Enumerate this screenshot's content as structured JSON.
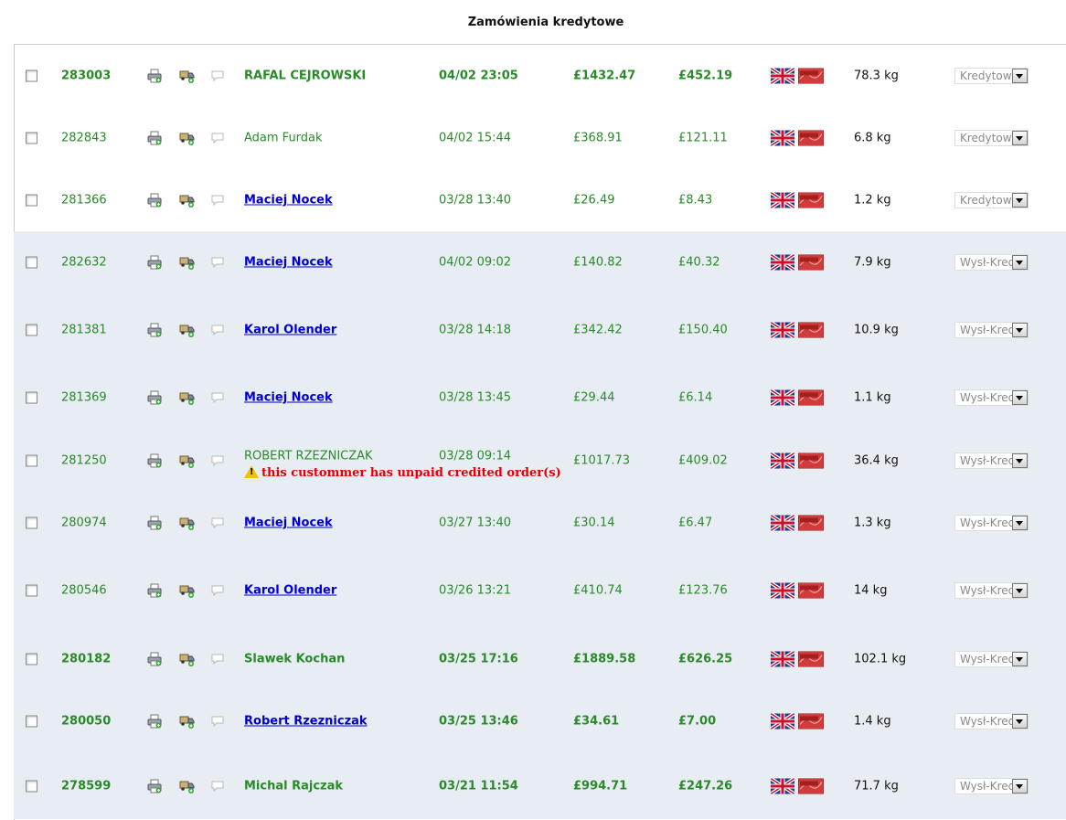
{
  "title": "Zamówienia kredytowe",
  "warning_text": "this custommer has unpaid credited order(s)",
  "rows": [
    {
      "id": "283003",
      "name": "RAFAL CEJROWSKI",
      "date": "04/02 23:05",
      "total": "£1432.47",
      "credit": "£452.19",
      "weight": "78.3 kg",
      "status": "Kredytowe"
    },
    {
      "id": "282843",
      "name": "Adam Furdak",
      "date": "04/02 15:44",
      "total": "£368.91",
      "credit": "£121.11",
      "weight": "6.8 kg",
      "status": "Kredytowe"
    },
    {
      "id": "281366",
      "name": "Maciej Nocek",
      "date": "03/28 13:40",
      "total": "£26.49",
      "credit": "£8.43",
      "weight": "1.2 kg",
      "status": "Kredytowe"
    },
    {
      "id": "282632",
      "name": "Maciej Nocek",
      "date": "04/02 09:02",
      "total": "£140.82",
      "credit": "£40.32",
      "weight": "7.9 kg",
      "status": "Wysł-Kredytowe"
    },
    {
      "id": "281381",
      "name": "Karol Olender",
      "date": "03/28 14:18",
      "total": "£342.42",
      "credit": "£150.40",
      "weight": "10.9 kg",
      "status": "Wysł-Kredytowe"
    },
    {
      "id": "281369",
      "name": "Maciej Nocek",
      "date": "03/28 13:45",
      "total": "£29.44",
      "credit": "£6.14",
      "weight": "1.1 kg",
      "status": "Wysł-Kredytowe"
    },
    {
      "id": "281250",
      "name": "ROBERT RZEZNICZAK",
      "date": "03/28 09:14",
      "total": "£1017.73",
      "credit": "£409.02",
      "weight": "36.4 kg",
      "status": "Wysł-Kredytowe"
    },
    {
      "id": "280974",
      "name": "Maciej Nocek",
      "date": "03/27 13:40",
      "total": "£30.14",
      "credit": "£6.47",
      "weight": "1.3 kg",
      "status": "Wysł-Kredytowe"
    },
    {
      "id": "280546",
      "name": "Karol Olender",
      "date": "03/26 13:21",
      "total": "£410.74",
      "credit": "£123.76",
      "weight": "14 kg",
      "status": "Wysł-Kredytowe"
    },
    {
      "id": "280182",
      "name": "Slawek Kochan",
      "date": "03/25 17:16",
      "total": "£1889.58",
      "credit": "£626.25",
      "weight": "102.1 kg",
      "status": "Wysł-Kredytowe"
    },
    {
      "id": "280050",
      "name": "Robert Rzezniczak",
      "date": "03/25 13:46",
      "total": "£34.61",
      "credit": "£7.00",
      "weight": "1.4 kg",
      "status": "Wysł-Kredytowe"
    },
    {
      "id": "278599",
      "name": "Michal Rajczak",
      "date": "03/21 11:54",
      "total": "£994.71",
      "credit": "£247.26",
      "weight": "71.7 kg",
      "status": "Wysł-Kredytowe"
    }
  ]
}
